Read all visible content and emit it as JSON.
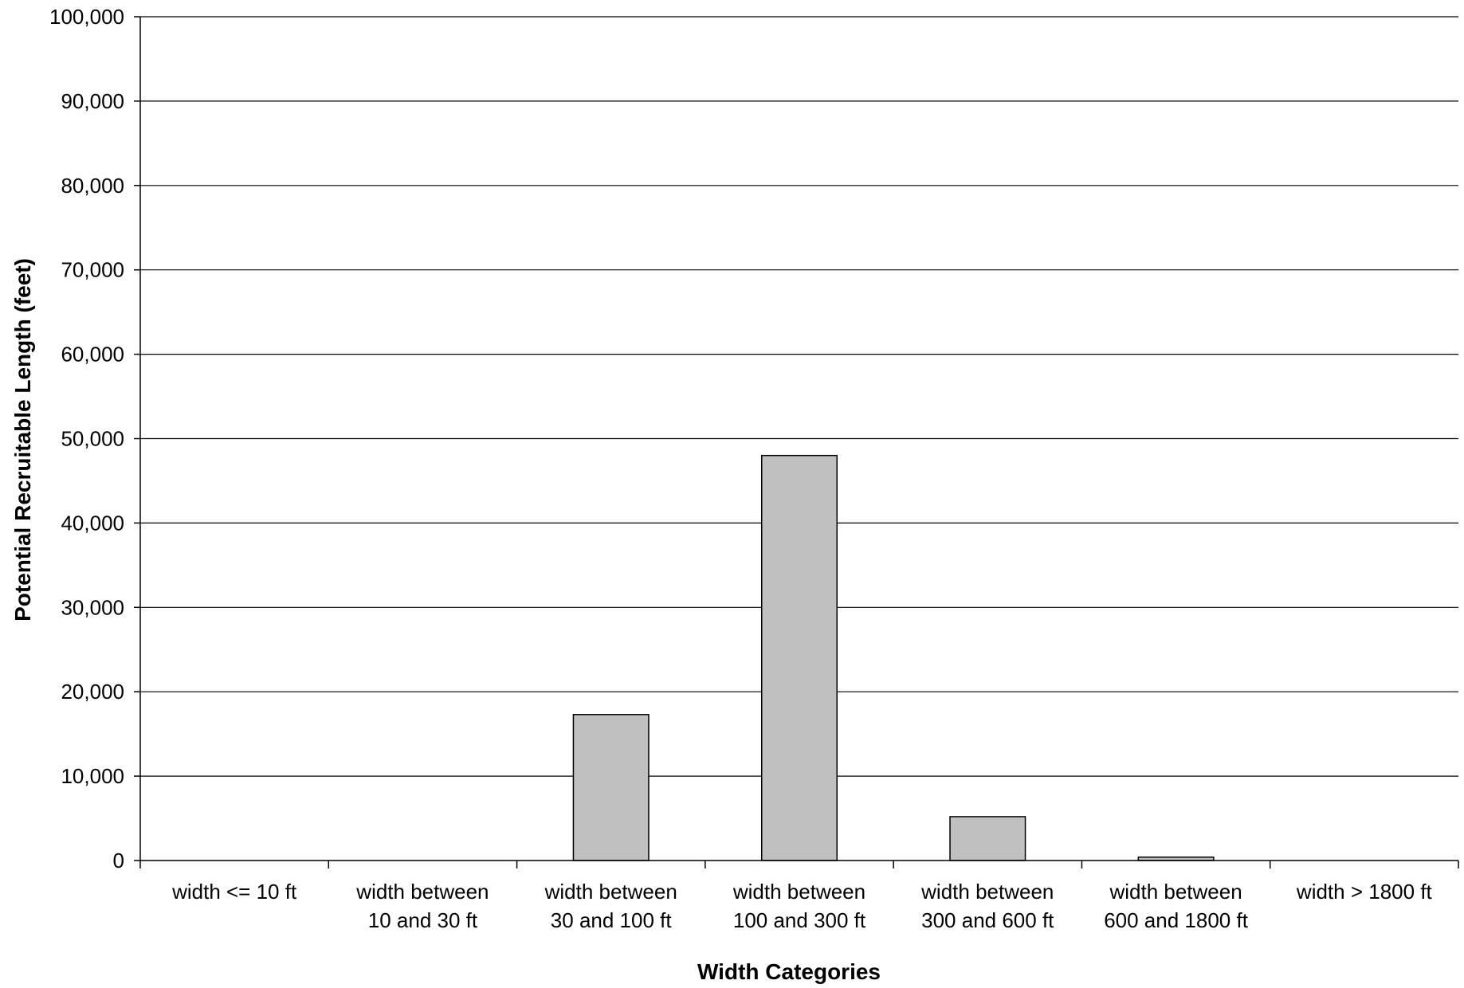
{
  "chart_data": {
    "type": "bar",
    "title": "",
    "xlabel": "Width Categories",
    "ylabel": "Potential Recruitable Length (feet)",
    "ylim": [
      0,
      100000
    ],
    "grid": true,
    "yticks": [
      "0",
      "10,000",
      "20,000",
      "30,000",
      "40,000",
      "50,000",
      "60,000",
      "70,000",
      "80,000",
      "90,000",
      "100,000"
    ],
    "categories": [
      [
        "width <= 10 ft"
      ],
      [
        "width between",
        "10 and 30 ft"
      ],
      [
        "width between",
        "30 and 100 ft"
      ],
      [
        "width between",
        "100 and 300 ft"
      ],
      [
        "width between",
        "300 and 600 ft"
      ],
      [
        "width between",
        "600 and 1800 ft"
      ],
      [
        "width > 1800 ft"
      ]
    ],
    "values": [
      0,
      0,
      17300,
      48000,
      5200,
      400,
      0
    ],
    "bar_color": "#c0c0c0"
  }
}
